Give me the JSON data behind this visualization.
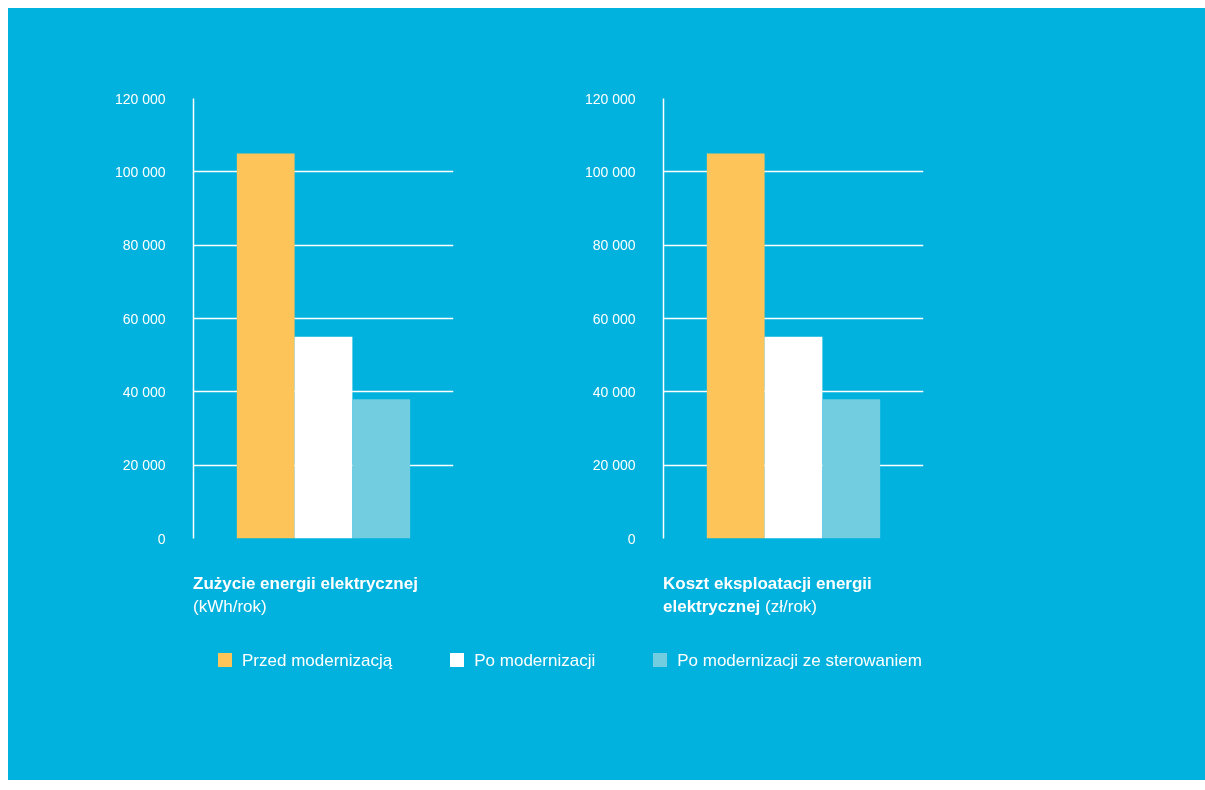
{
  "chart_data": [
    {
      "type": "bar",
      "title": "Zużycie energii elektrycznej",
      "subtitle": "(kWh/rok)",
      "categories": [
        null
      ],
      "series": [
        {
          "name": "Przed modernizacją",
          "color": "#fdc45a",
          "values": [
            105000
          ]
        },
        {
          "name": "Po modernizacji",
          "color": "#ffffff",
          "values": [
            55000
          ]
        },
        {
          "name": "Po modernizacji ze sterowaniem",
          "color": "#72cde0",
          "values": [
            38000
          ]
        }
      ],
      "ylim": [
        0,
        120000
      ],
      "yticks": [
        {
          "value": 0,
          "label": "0"
        },
        {
          "value": 20000,
          "label": "20 000"
        },
        {
          "value": 40000,
          "label": "40 000"
        },
        {
          "value": 60000,
          "label": "60 000"
        },
        {
          "value": 80000,
          "label": "80 000"
        },
        {
          "value": 100000,
          "label": "100 000"
        },
        {
          "value": 120000,
          "label": "120 000"
        }
      ],
      "grid": "y",
      "legend": "bottom"
    },
    {
      "type": "bar",
      "title": "Koszt eksploatacji energii elektrycznej",
      "subtitle": "(zł/rok)",
      "categories": [
        null
      ],
      "series": [
        {
          "color": "#fdc45a",
          "values": [
            105000
          ]
        },
        {
          "color": "#ffffff",
          "values": [
            55000
          ]
        },
        {
          "color": "#72cde0",
          "values": [
            38000
          ]
        }
      ],
      "ylim": [
        0,
        120000
      ],
      "yticks": [
        {
          "value": 0,
          "label": "0"
        },
        {
          "value": 20000,
          "label": "20 000"
        },
        {
          "value": 40000,
          "label": "40 000"
        },
        {
          "value": 60000,
          "label": "60 000"
        },
        {
          "value": 80000,
          "label": "80 000"
        },
        {
          "value": 100000,
          "label": "100 000"
        },
        {
          "value": 120000,
          "label": "120 000"
        }
      ],
      "grid": "y"
    }
  ]
}
